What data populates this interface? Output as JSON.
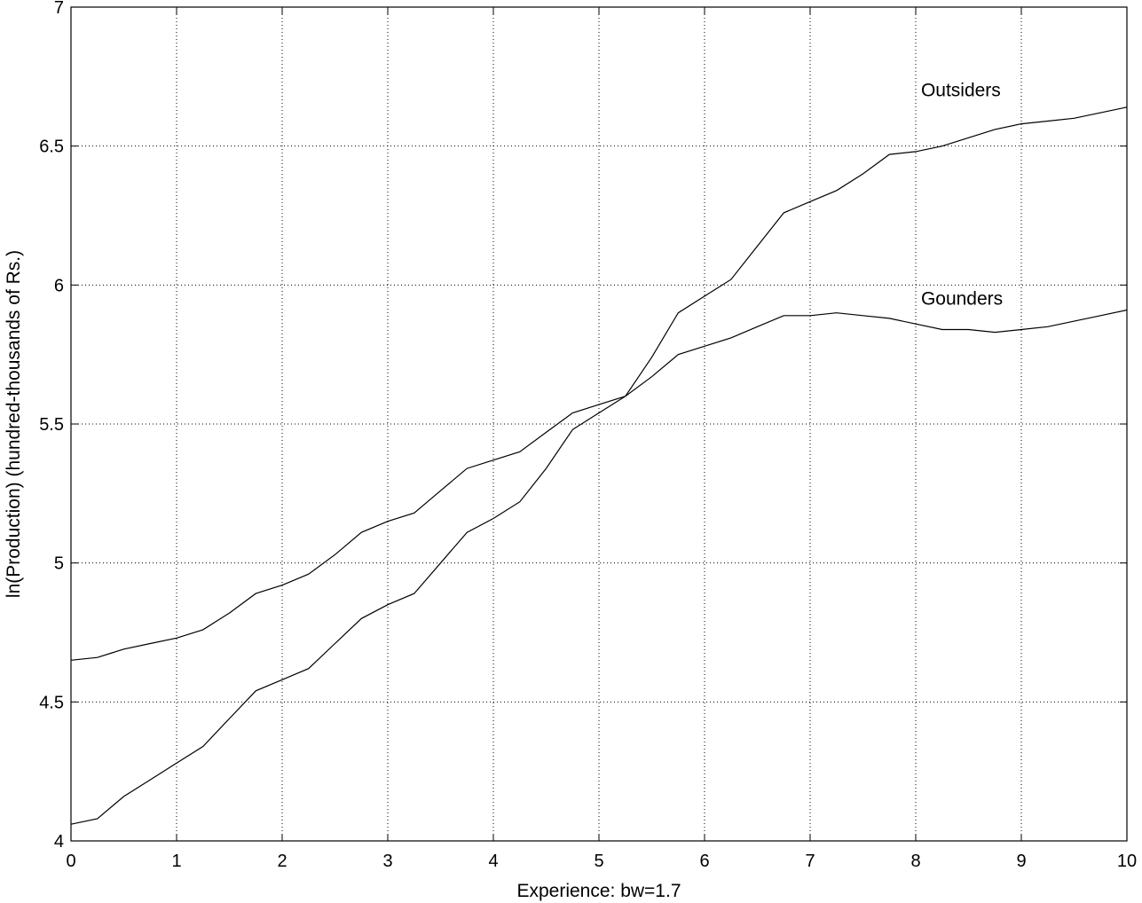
{
  "chart_data": {
    "type": "line",
    "xlabel": "Experience: bw=1.7",
    "ylabel": "ln(Production) (hundred-thousands of Rs.)",
    "xlim": [
      0,
      10
    ],
    "ylim": [
      4,
      7
    ],
    "xticks": [
      0,
      1,
      2,
      3,
      4,
      5,
      6,
      7,
      8,
      9,
      10
    ],
    "xtick_labels": [
      "0",
      "1",
      "2",
      "3",
      "4",
      "5",
      "6",
      "7",
      "8",
      "9",
      "10"
    ],
    "yticks": [
      4,
      4.5,
      5,
      5.5,
      6,
      6.5,
      7
    ],
    "ytick_labels": [
      "4",
      "4.5",
      "5",
      "5.5",
      "6",
      "6.5",
      "7"
    ],
    "grid": true,
    "x": [
      0,
      0.25,
      0.5,
      0.75,
      1,
      1.25,
      1.5,
      1.75,
      2,
      2.25,
      2.5,
      2.75,
      3,
      3.25,
      3.5,
      3.75,
      4,
      4.25,
      4.5,
      4.75,
      5,
      5.25,
      5.5,
      5.75,
      6,
      6.25,
      6.5,
      6.75,
      7,
      7.25,
      7.5,
      7.75,
      8,
      8.25,
      8.5,
      8.75,
      9,
      9.25,
      9.5,
      9.75,
      10
    ],
    "series": [
      {
        "name": "Outsiders",
        "values": [
          4.06,
          4.08,
          4.16,
          4.22,
          4.28,
          4.34,
          4.44,
          4.54,
          4.58,
          4.62,
          4.71,
          4.8,
          4.85,
          4.89,
          5.0,
          5.11,
          5.16,
          5.22,
          5.34,
          5.48,
          5.54,
          5.6,
          5.74,
          5.9,
          5.96,
          6.02,
          6.14,
          6.26,
          6.3,
          6.34,
          6.4,
          6.47,
          6.48,
          6.5,
          6.53,
          6.56,
          6.58,
          6.59,
          6.6,
          6.62,
          6.64
        ]
      },
      {
        "name": "Gounders",
        "values": [
          4.65,
          4.66,
          4.69,
          4.71,
          4.73,
          4.76,
          4.82,
          4.89,
          4.92,
          4.96,
          5.03,
          5.11,
          5.15,
          5.18,
          5.26,
          5.34,
          5.37,
          5.4,
          5.47,
          5.54,
          5.57,
          5.6,
          5.67,
          5.75,
          5.78,
          5.81,
          5.85,
          5.89,
          5.89,
          5.9,
          5.89,
          5.88,
          5.86,
          5.84,
          5.84,
          5.83,
          5.84,
          5.85,
          5.87,
          5.89,
          5.91
        ]
      }
    ],
    "annotations": [
      {
        "text": "Outsiders",
        "x": 8.05,
        "y": 6.68
      },
      {
        "text": "Gounders",
        "x": 8.05,
        "y": 5.93
      }
    ]
  }
}
